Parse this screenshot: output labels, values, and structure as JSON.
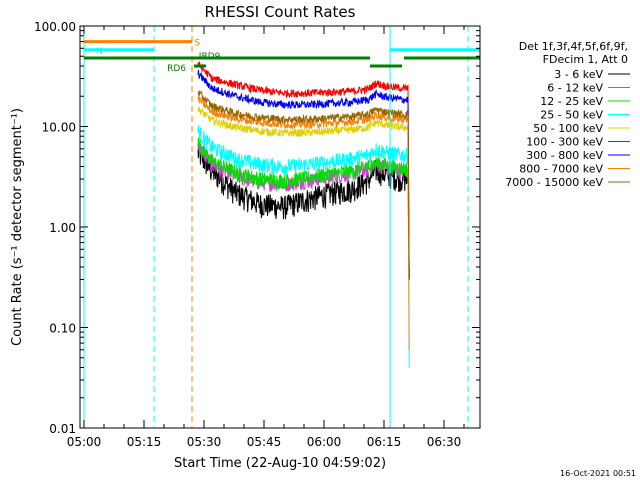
{
  "chart_data": {
    "type": "line",
    "title": "RHESSI Count Rates",
    "xlabel": "Start Time (22-Aug-10 04:59:02)",
    "ylabel": "Count Rate (s⁻¹ detector segment⁻¹)",
    "yscale": "log",
    "ylim": [
      0.01,
      100
    ],
    "xlim_minutes_after_0500": [
      -1,
      99
    ],
    "y_ticks": [
      {
        "v": 100,
        "label": "100.00"
      },
      {
        "v": 10,
        "label": "10.00"
      },
      {
        "v": 1,
        "label": "1.00"
      },
      {
        "v": 0.1,
        "label": "0.10"
      },
      {
        "v": 0.01,
        "label": "0.01"
      }
    ],
    "x_ticks": [
      {
        "m": 0,
        "label": "05:00"
      },
      {
        "m": 15,
        "label": "05:15"
      },
      {
        "m": 30,
        "label": "05:30"
      },
      {
        "m": 45,
        "label": "05:45"
      },
      {
        "m": 60,
        "label": "06:00"
      },
      {
        "m": 75,
        "label": "06:15"
      },
      {
        "m": 90,
        "label": "06:30"
      }
    ],
    "legend_header": [
      "Det 1f,3f,4f,5f,6f,9f,",
      "FDecim 1, Att 0"
    ],
    "data_range_minutes": [
      28.5,
      81
    ],
    "series": [
      {
        "name": "3 - 6 keV",
        "color": "#000000",
        "values": [
          [
            28.5,
            5.5
          ],
          [
            32,
            3.6
          ],
          [
            38,
            2.2
          ],
          [
            44,
            1.7
          ],
          [
            50,
            1.6
          ],
          [
            56,
            1.9
          ],
          [
            62,
            2.2
          ],
          [
            67,
            2.4
          ],
          [
            71,
            2.9
          ],
          [
            73,
            3.7
          ],
          [
            76,
            3.3
          ],
          [
            80,
            3.0
          ],
          [
            81,
            3.0
          ]
        ]
      },
      {
        "name": "6 - 12 keV",
        "color": "#d040d0",
        "values": [
          [
            28.5,
            6.5
          ],
          [
            32,
            4.2
          ],
          [
            38,
            3.2
          ],
          [
            44,
            2.8
          ],
          [
            50,
            2.7
          ],
          [
            56,
            2.9
          ],
          [
            62,
            3.2
          ],
          [
            67,
            3.4
          ],
          [
            71,
            3.8
          ],
          [
            73,
            4.2
          ],
          [
            76,
            3.9
          ],
          [
            80,
            3.6
          ],
          [
            81,
            3.6
          ]
        ]
      },
      {
        "name": "12 - 25 keV",
        "color": "#00e000",
        "values": [
          [
            28.5,
            7.0
          ],
          [
            32,
            4.5
          ],
          [
            38,
            3.5
          ],
          [
            44,
            3.0
          ],
          [
            50,
            2.9
          ],
          [
            56,
            3.1
          ],
          [
            62,
            3.4
          ],
          [
            67,
            3.6
          ],
          [
            71,
            4.0
          ],
          [
            73,
            4.4
          ],
          [
            76,
            4.1
          ],
          [
            80,
            3.8
          ],
          [
            81,
            3.8
          ]
        ]
      },
      {
        "name": "25 - 50 keV",
        "color": "#00ffff",
        "values": [
          [
            28.5,
            9.0
          ],
          [
            32,
            6.2
          ],
          [
            38,
            4.8
          ],
          [
            44,
            4.2
          ],
          [
            50,
            4.0
          ],
          [
            56,
            4.2
          ],
          [
            62,
            4.5
          ],
          [
            67,
            4.8
          ],
          [
            71,
            5.2
          ],
          [
            73,
            6.0
          ],
          [
            76,
            5.5
          ],
          [
            80,
            5.2
          ],
          [
            81,
            5.2
          ]
        ]
      },
      {
        "name": "50 - 100 keV",
        "color": "#e0d000",
        "values": [
          [
            28.5,
            15
          ],
          [
            32,
            11.5
          ],
          [
            38,
            9.8
          ],
          [
            44,
            9.0
          ],
          [
            50,
            8.6
          ],
          [
            56,
            8.7
          ],
          [
            62,
            9.0
          ],
          [
            67,
            9.3
          ],
          [
            71,
            9.8
          ],
          [
            73,
            11.0
          ],
          [
            76,
            10.2
          ],
          [
            80,
            9.8
          ],
          [
            81,
            9.8
          ]
        ]
      },
      {
        "name": "100 - 300 keV",
        "color": "#ff0000",
        "values": [
          [
            28.5,
            42
          ],
          [
            32,
            30
          ],
          [
            38,
            26
          ],
          [
            44,
            23
          ],
          [
            50,
            21.5
          ],
          [
            56,
            21.5
          ],
          [
            62,
            22
          ],
          [
            67,
            22.5
          ],
          [
            71,
            23.5
          ],
          [
            73,
            27
          ],
          [
            76,
            25
          ],
          [
            80,
            24
          ],
          [
            81,
            24
          ]
        ]
      },
      {
        "name": "300 - 800 keV",
        "color": "#0000ff",
        "values": [
          [
            28.5,
            34
          ],
          [
            32,
            24
          ],
          [
            38,
            20
          ],
          [
            44,
            17.5
          ],
          [
            50,
            16.5
          ],
          [
            56,
            16.5
          ],
          [
            62,
            17
          ],
          [
            67,
            17.5
          ],
          [
            71,
            18.5
          ],
          [
            73,
            21
          ],
          [
            76,
            19.5
          ],
          [
            80,
            18.5
          ],
          [
            81,
            18.5
          ]
        ]
      },
      {
        "name": "800 - 7000 keV",
        "color": "#ff8000",
        "values": [
          [
            28.5,
            19
          ],
          [
            32,
            14
          ],
          [
            38,
            12
          ],
          [
            44,
            11
          ],
          [
            50,
            10.5
          ],
          [
            56,
            10.5
          ],
          [
            62,
            10.8
          ],
          [
            67,
            11.2
          ],
          [
            71,
            11.8
          ],
          [
            73,
            13
          ],
          [
            76,
            12.2
          ],
          [
            80,
            11.8
          ],
          [
            81,
            11.8
          ]
        ]
      },
      {
        "name": "7000 - 15000 keV",
        "color": "#996600",
        "values": [
          [
            28.5,
            22
          ],
          [
            32,
            16
          ],
          [
            38,
            13.5
          ],
          [
            44,
            12.3
          ],
          [
            50,
            11.8
          ],
          [
            56,
            11.8
          ],
          [
            62,
            12.2
          ],
          [
            67,
            12.6
          ],
          [
            71,
            13.3
          ],
          [
            73,
            14.8
          ],
          [
            76,
            13.8
          ],
          [
            80,
            13.2
          ],
          [
            81,
            13.2
          ]
        ]
      }
    ],
    "flag_bars": [
      {
        "label": "S",
        "color": "#ff8000",
        "y": 70,
        "segments": [
          [
            0,
            27
          ]
        ]
      },
      {
        "label": "N",
        "color": "#00ffff",
        "y": 58,
        "segments": [
          [
            0,
            17.5
          ],
          [
            76.5,
            99
          ]
        ]
      },
      {
        "label": "",
        "color": "#008000",
        "y": 48,
        "segments": [
          [
            0,
            71.5
          ],
          [
            80,
            99
          ]
        ]
      },
      {
        "label": "RD6",
        "color": "#008000",
        "y": 40,
        "segments": [
          [
            27.5,
            30.5
          ],
          [
            71.5,
            79.5
          ]
        ]
      },
      {
        "label": "IRD9",
        "color": "#008000",
        "y": 48,
        "segments": []
      }
    ],
    "vertical_lines": [
      {
        "m": 17.5,
        "color": "#00ffff",
        "style": "dashed"
      },
      {
        "m": 27,
        "color": "#ff8000",
        "style": "dashed"
      },
      {
        "m": 76.5,
        "color": "#00ffff",
        "style": "solid"
      },
      {
        "m": 96,
        "color": "#00ffff",
        "style": "dashed"
      },
      {
        "m": 0,
        "color": "#00ffff",
        "style": "solid"
      }
    ],
    "timestamp": "16-Oct-2021 00:51"
  }
}
